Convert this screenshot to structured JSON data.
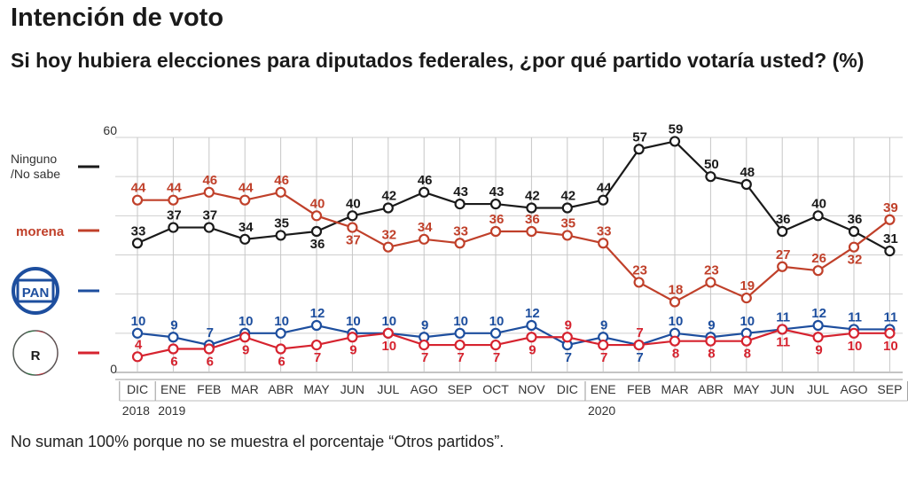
{
  "title": "Intención de voto",
  "subtitle": "Si hoy hubiera elecciones para diputados federales, ¿por qué partido votaría usted? (%)",
  "note": "No suman 100% porque no se muestra el porcentaje “Otros partidos”.",
  "chart_data": {
    "type": "line",
    "ylim": [
      0,
      60
    ],
    "y_ticks": [
      "60",
      "0"
    ],
    "categories": [
      "DIC",
      "ENE",
      "FEB",
      "MAR",
      "ABR",
      "MAY",
      "JUN",
      "JUL",
      "AGO",
      "SEP",
      "OCT",
      "NOV",
      "DIC",
      "ENE",
      "FEB",
      "MAR",
      "ABR",
      "MAY",
      "JUN",
      "JUL",
      "AGO",
      "SEP"
    ],
    "years": [
      {
        "label": "2018",
        "start": 0,
        "end": 0
      },
      {
        "label": "2019",
        "start": 1,
        "end": 12
      },
      {
        "label": "2020",
        "start": 13,
        "end": 21
      }
    ],
    "series": [
      {
        "name": "Ninguno /No sabe",
        "legend_lines": [
          "Ninguno",
          "/No sabe"
        ],
        "color": "#1a1a1a",
        "values": [
          33,
          37,
          37,
          34,
          35,
          36,
          40,
          42,
          46,
          43,
          43,
          42,
          42,
          44,
          57,
          59,
          50,
          48,
          36,
          40,
          36,
          31
        ],
        "label_pos": [
          "a",
          "a",
          "a",
          "a",
          "a",
          "b",
          "a",
          "a",
          "a",
          "a",
          "a",
          "a",
          "a",
          "a",
          "a",
          "a",
          "a",
          "a",
          "a",
          "a",
          "a",
          "a"
        ]
      },
      {
        "name": "morena",
        "legend_logo": "morena",
        "color": "#c0402a",
        "values": [
          44,
          44,
          46,
          44,
          46,
          40,
          37,
          32,
          34,
          33,
          36,
          36,
          35,
          33,
          23,
          18,
          23,
          19,
          27,
          26,
          32,
          39
        ],
        "label_pos": [
          "a",
          "a",
          "a",
          "a",
          "a",
          "a",
          "b",
          "a",
          "a",
          "a",
          "a",
          "a",
          "a",
          "a",
          "a",
          "a",
          "a",
          "a",
          "a",
          "a",
          "b",
          "a"
        ]
      },
      {
        "name": "PAN",
        "legend_logo": "PAN",
        "color": "#1d4e9e",
        "values": [
          10,
          9,
          7,
          10,
          10,
          12,
          10,
          10,
          9,
          10,
          10,
          12,
          7,
          9,
          7,
          10,
          9,
          10,
          11,
          12,
          11,
          11
        ],
        "label_pos": [
          "a",
          "a",
          "a",
          "a",
          "a",
          "a",
          "a",
          "a",
          "a",
          "a",
          "a",
          "a",
          "b",
          "a",
          "b",
          "a",
          "a",
          "a",
          "a",
          "a",
          "a",
          "a"
        ]
      },
      {
        "name": "PRI",
        "legend_logo": "PRI",
        "color": "#d6232f",
        "values": [
          4,
          6,
          6,
          9,
          6,
          7,
          9,
          10,
          7,
          7,
          7,
          9,
          9,
          7,
          7,
          8,
          8,
          8,
          11,
          9,
          10,
          10
        ],
        "label_pos": [
          "a",
          "b",
          "b",
          "b",
          "b",
          "b",
          "b",
          "b",
          "b",
          "b",
          "b",
          "b",
          "a",
          "b",
          "a",
          "b",
          "b",
          "b",
          "b",
          "b",
          "b",
          "b"
        ]
      }
    ]
  }
}
